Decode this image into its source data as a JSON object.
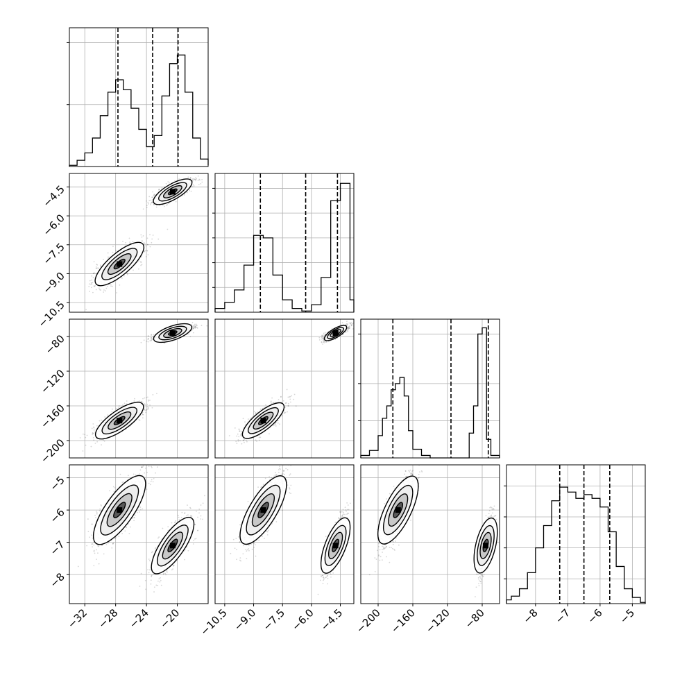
{
  "chart_data": {
    "type": "corner",
    "grid": true,
    "variables": [
      {
        "range": [
          -34,
          -16
        ],
        "ticks": [
          -32,
          -28,
          -24,
          -20
        ],
        "tick_labels": [
          "−32",
          "−28",
          "−24",
          "−20"
        ],
        "quantiles": [
          -27.7,
          -23.2,
          -19.9
        ],
        "hist": {
          "bins": [
            -34,
            -33,
            -32,
            -31,
            -30,
            -29,
            -28,
            -27,
            -26,
            -25,
            -24,
            -23,
            -22,
            -21,
            -20,
            -19,
            -18,
            -17,
            -16
          ],
          "counts": [
            0.01,
            0.05,
            0.11,
            0.23,
            0.41,
            0.6,
            0.7,
            0.62,
            0.47,
            0.3,
            0.16,
            0.25,
            0.57,
            0.83,
            0.9,
            0.6,
            0.23,
            0.06,
            0.01
          ],
          "grid_levels": [
            0.5,
            1.0
          ]
        },
        "modes": [
          {
            "center": -27.5,
            "spread": 1.6
          },
          {
            "center": -20.6,
            "spread": 1.3
          }
        ]
      },
      {
        "range": [
          -11,
          -3.8
        ],
        "ticks": [
          -10.5,
          -9.0,
          -7.5,
          -6.0,
          -4.5
        ],
        "tick_labels": [
          "−10.5",
          "−9.0",
          "−7.5",
          "−6.0",
          "−4.5"
        ],
        "quantiles": [
          -8.65,
          -6.3,
          -4.65
        ],
        "hist": {
          "bins": [
            -11,
            -10.5,
            -10,
            -9.5,
            -9,
            -8.5,
            -8,
            -7.5,
            -7,
            -6.5,
            -6,
            -5.5,
            -5,
            -4.5,
            -4,
            -3.8
          ],
          "counts": [
            0.03,
            0.08,
            0.18,
            0.38,
            0.62,
            0.6,
            0.3,
            0.1,
            0.03,
            0.01,
            0.06,
            0.28,
            0.9,
            1.04,
            0.1
          ],
          "grid_levels": [
            0.2,
            0.4,
            0.6,
            0.8,
            1.0
          ]
        },
        "modes": [
          {
            "center": -8.5,
            "spread": 0.55
          },
          {
            "center": -4.75,
            "spread": 0.3
          }
        ]
      },
      {
        "range": [
          -220,
          -60
        ],
        "ticks": [
          -200,
          -160,
          -120,
          -80
        ],
        "tick_labels": [
          "−200",
          "−160",
          "−120",
          "−80"
        ],
        "quantiles": [
          -183,
          -116,
          -73
        ],
        "hist": {
          "bins": [
            -220,
            -210,
            -200,
            -195,
            -190,
            -185,
            -180,
            -175,
            -170,
            -165,
            -160,
            -150,
            -140,
            -125,
            -100,
            -95,
            -90,
            -85,
            -80,
            -75,
            -70,
            -60
          ],
          "counts": [
            0.02,
            0.06,
            0.18,
            0.32,
            0.42,
            0.55,
            0.6,
            0.65,
            0.5,
            0.22,
            0.07,
            0.02,
            0.0,
            0.0,
            0.0,
            0.2,
            0.42,
            1.0,
            1.05,
            0.15,
            0.02
          ],
          "grid_levels": [
            0.3,
            0.6,
            1.0
          ]
        },
        "modes": [
          {
            "center": -177,
            "spread": 10
          },
          {
            "center": -76,
            "spread": 4
          }
        ]
      },
      {
        "range": [
          -8.9,
          -4.6
        ],
        "ticks": [
          -8,
          -7,
          -6,
          -5
        ],
        "tick_labels": [
          "−8",
          "−7",
          "−6",
          "−5"
        ],
        "quantiles": [
          -7.25,
          -6.5,
          -5.7
        ],
        "hist": {
          "bins": [
            -8.9,
            -8.75,
            -8.5,
            -8.25,
            -8.0,
            -7.75,
            -7.5,
            -7.25,
            -7.0,
            -6.75,
            -6.5,
            -6.25,
            -6.0,
            -5.75,
            -5.5,
            -5.25,
            -5.0,
            -4.75,
            -4.6
          ],
          "counts": [
            0.03,
            0.06,
            0.12,
            0.25,
            0.45,
            0.63,
            0.83,
            0.94,
            0.9,
            0.85,
            0.88,
            0.85,
            0.78,
            0.58,
            0.3,
            0.12,
            0.05,
            0.01
          ],
          "grid_levels": [
            0.2,
            0.45,
            0.7,
            0.95
          ]
        },
        "modes": [
          {
            "center": -6.0,
            "spread": 0.55
          },
          {
            "center": -7.1,
            "spread": 0.45
          }
        ]
      }
    ],
    "scatter_alignment": "mode 1 of every variable belongs to the first cluster, mode 2 to the second cluster"
  }
}
